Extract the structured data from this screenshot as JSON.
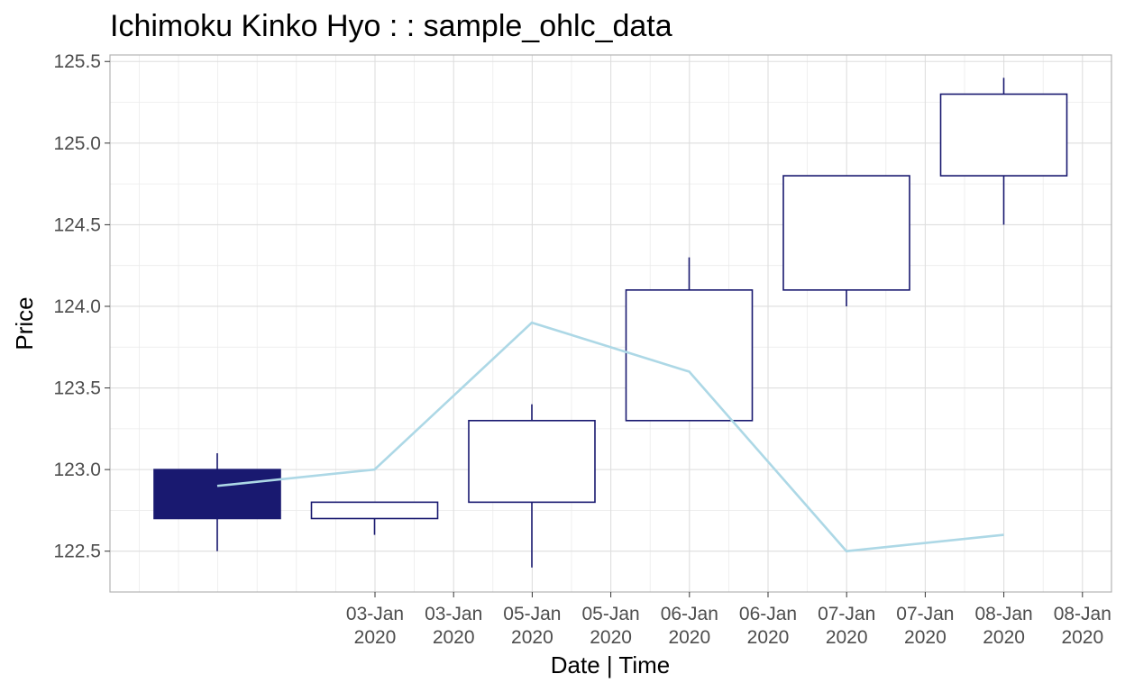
{
  "chart_data": {
    "type": "candlestick",
    "title": "Ichimoku Kinko Hyo : : sample_ohlc_data",
    "xlabel": "Date | Time",
    "ylabel": "Price",
    "ylim": [
      122.25,
      125.54
    ],
    "y_ticks": [
      "122.5",
      "123.0",
      "123.5",
      "124.0",
      "124.5",
      "125.0",
      "125.5"
    ],
    "x_tick_labels": [
      [
        "03-Jan",
        "2020"
      ],
      [
        "03-Jan",
        "2020"
      ],
      [
        "05-Jan",
        "2020"
      ],
      [
        "05-Jan",
        "2020"
      ],
      [
        "06-Jan",
        "2020"
      ],
      [
        "06-Jan",
        "2020"
      ],
      [
        "07-Jan",
        "2020"
      ],
      [
        "07-Jan",
        "2020"
      ],
      [
        "08-Jan",
        "2020"
      ],
      [
        "08-Jan",
        "2020"
      ]
    ],
    "grid": true,
    "candles": [
      {
        "open": 123.0,
        "high": 123.1,
        "low": 122.5,
        "close": 122.7
      },
      {
        "open": 122.7,
        "high": 122.8,
        "low": 122.6,
        "close": 122.8
      },
      {
        "open": 122.8,
        "high": 123.4,
        "low": 122.4,
        "close": 123.3
      },
      {
        "open": 123.3,
        "high": 124.3,
        "low": 123.3,
        "close": 124.1
      },
      {
        "open": 124.1,
        "high": 124.8,
        "low": 124.0,
        "close": 124.8
      },
      {
        "open": 124.8,
        "high": 125.4,
        "low": 124.5,
        "close": 125.3
      }
    ],
    "line_series": {
      "values": [
        122.9,
        123.0,
        123.9,
        123.6,
        122.5,
        122.6
      ],
      "color": "#add8e6"
    },
    "colors": {
      "bearish_fill": "#191970",
      "bullish_fill": "#ffffff",
      "candle_stroke": "#191970"
    }
  }
}
